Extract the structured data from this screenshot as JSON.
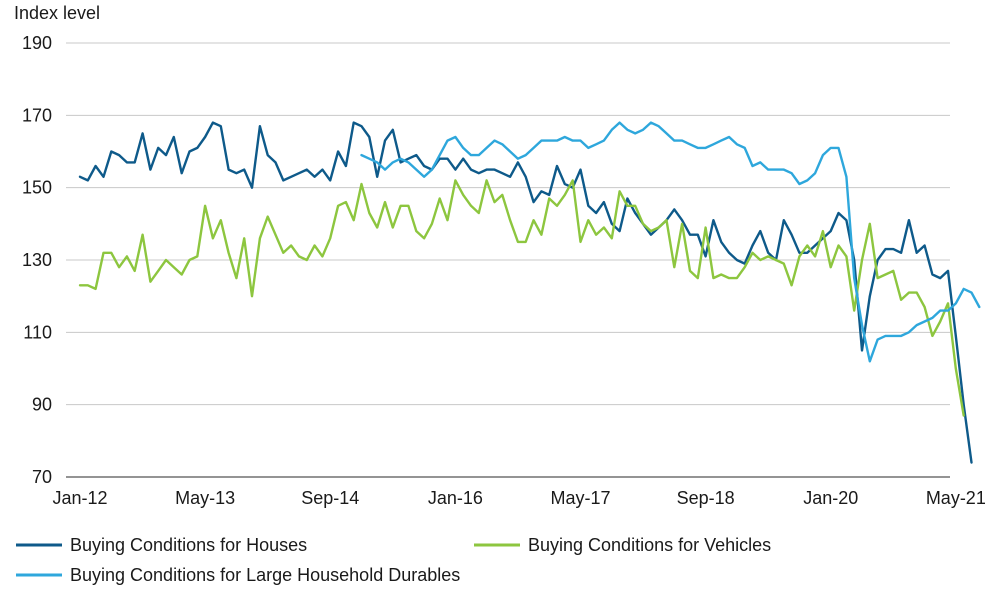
{
  "chart_data": {
    "type": "line",
    "title": "",
    "ylabel": "Index level",
    "xlabel": "",
    "ylim": [
      70,
      190
    ],
    "yticks": [
      70,
      90,
      110,
      130,
      150,
      170,
      190
    ],
    "xlim": [
      "2012-01",
      "2021-09"
    ],
    "xticks": [
      {
        "date": "2012-01",
        "label": "Jan-12"
      },
      {
        "date": "2013-05",
        "label": "May-13"
      },
      {
        "date": "2014-09",
        "label": "Sep-14"
      },
      {
        "date": "2016-01",
        "label": "Jan-16"
      },
      {
        "date": "2017-05",
        "label": "May-17"
      },
      {
        "date": "2018-09",
        "label": "Sep-18"
      },
      {
        "date": "2020-01",
        "label": "Jan-20"
      },
      {
        "date": "2021-05",
        "label": "May-21"
      }
    ],
    "grid": true,
    "legend_position": "bottom",
    "series": [
      {
        "name": "Buying Conditions for Houses",
        "color": "#0e5a8a",
        "start": "2012-01",
        "values": [
          153,
          152,
          156,
          153,
          160,
          159,
          157,
          157,
          165,
          155,
          161,
          159,
          164,
          154,
          160,
          161,
          164,
          168,
          167,
          155,
          154,
          155,
          150,
          167,
          159,
          157,
          152,
          153,
          154,
          155,
          153,
          155,
          152,
          160,
          156,
          168,
          167,
          164,
          153,
          163,
          166,
          157,
          158,
          159,
          156,
          155,
          158,
          158,
          155,
          158,
          155,
          154,
          155,
          155,
          154,
          153,
          157,
          153,
          146,
          149,
          148,
          156,
          151,
          150,
          155,
          145,
          143,
          146,
          140,
          138,
          147,
          143,
          140,
          137,
          139,
          141,
          144,
          141,
          137,
          137,
          131,
          141,
          135,
          132,
          130,
          129,
          134,
          138,
          132,
          130,
          141,
          137,
          132,
          132,
          134,
          136,
          138,
          143,
          141,
          130,
          105,
          120,
          130,
          133,
          133,
          132,
          141,
          132,
          134,
          126,
          125,
          127,
          109,
          90,
          74
        ]
      },
      {
        "name": "Buying Conditions for Vehicles",
        "color": "#8dc63f",
        "start": "2012-01",
        "values": [
          123,
          123,
          122,
          132,
          132,
          128,
          131,
          127,
          137,
          124,
          127,
          130,
          128,
          126,
          130,
          131,
          145,
          136,
          141,
          132,
          125,
          136,
          120,
          136,
          142,
          137,
          132,
          134,
          131,
          130,
          134,
          131,
          136,
          145,
          146,
          141,
          151,
          143,
          139,
          146,
          139,
          145,
          145,
          138,
          136,
          140,
          147,
          141,
          152,
          148,
          145,
          143,
          152,
          146,
          148,
          141,
          135,
          135,
          141,
          137,
          147,
          145,
          148,
          152,
          135,
          141,
          137,
          139,
          136,
          149,
          145,
          145,
          140,
          138,
          139,
          141,
          128,
          140,
          127,
          125,
          139,
          125,
          126,
          125,
          125,
          128,
          132,
          130,
          131,
          130,
          129,
          123,
          131,
          134,
          131,
          138,
          128,
          134,
          131,
          116,
          130,
          140,
          125,
          126,
          127,
          119,
          121,
          121,
          117,
          109,
          113,
          118,
          100,
          87
        ]
      },
      {
        "name": "Buying Conditions for Large Household Durables",
        "color": "#2ea7dc",
        "start": "2015-01",
        "values": [
          159,
          158,
          157,
          155,
          157,
          158,
          157,
          155,
          153,
          155,
          159,
          163,
          164,
          161,
          159,
          159,
          161,
          163,
          162,
          160,
          158,
          159,
          161,
          163,
          163,
          163,
          164,
          163,
          163,
          161,
          162,
          163,
          166,
          168,
          166,
          165,
          166,
          168,
          167,
          165,
          163,
          163,
          162,
          161,
          161,
          162,
          163,
          164,
          162,
          161,
          156,
          157,
          155,
          155,
          155,
          154,
          151,
          152,
          154,
          159,
          161,
          161,
          153,
          125,
          112,
          102,
          108,
          109,
          109,
          109,
          110,
          112,
          113,
          114,
          116,
          116,
          118,
          122,
          121,
          117
        ]
      }
    ]
  }
}
